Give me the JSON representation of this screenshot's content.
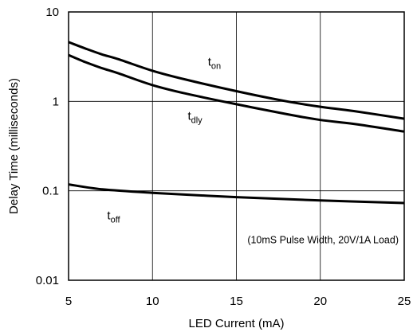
{
  "chart_data": {
    "type": "line",
    "title": "",
    "xlabel": "LED Current (mA)",
    "ylabel": "Delay Time (milliseconds)",
    "xlim": [
      5,
      25
    ],
    "ylim": [
      0.01,
      10
    ],
    "yscale": "log",
    "grid": true,
    "x_ticks": [
      "5",
      "10",
      "15",
      "20",
      "25"
    ],
    "y_ticks": [
      "0.01",
      "0.1",
      "1",
      "10"
    ],
    "x_tick_values": [
      5,
      10,
      15,
      20,
      25
    ],
    "y_tick_values": [
      0.01,
      0.1,
      1,
      10
    ],
    "annotation": "(10mS Pulse Width, 20V/1A Load)",
    "series": [
      {
        "name": "ton",
        "label_main": "t",
        "label_sub": "on",
        "x": [
          5,
          6,
          7,
          8,
          10,
          12,
          15,
          18,
          20,
          22,
          25
        ],
        "y": [
          4.6,
          3.9,
          3.35,
          2.95,
          2.2,
          1.75,
          1.3,
          1.0,
          0.87,
          0.78,
          0.64
        ]
      },
      {
        "name": "tdly",
        "label_main": "t",
        "label_sub": "dly",
        "x": [
          5,
          6,
          7,
          8,
          10,
          12,
          15,
          18,
          20,
          22,
          25
        ],
        "y": [
          3.3,
          2.75,
          2.35,
          2.05,
          1.52,
          1.22,
          0.93,
          0.72,
          0.62,
          0.56,
          0.46
        ]
      },
      {
        "name": "toff",
        "label_main": "t",
        "label_sub": "off",
        "x": [
          5,
          7,
          10,
          15,
          20,
          25
        ],
        "y": [
          0.118,
          0.104,
          0.095,
          0.085,
          0.078,
          0.073
        ]
      }
    ]
  }
}
